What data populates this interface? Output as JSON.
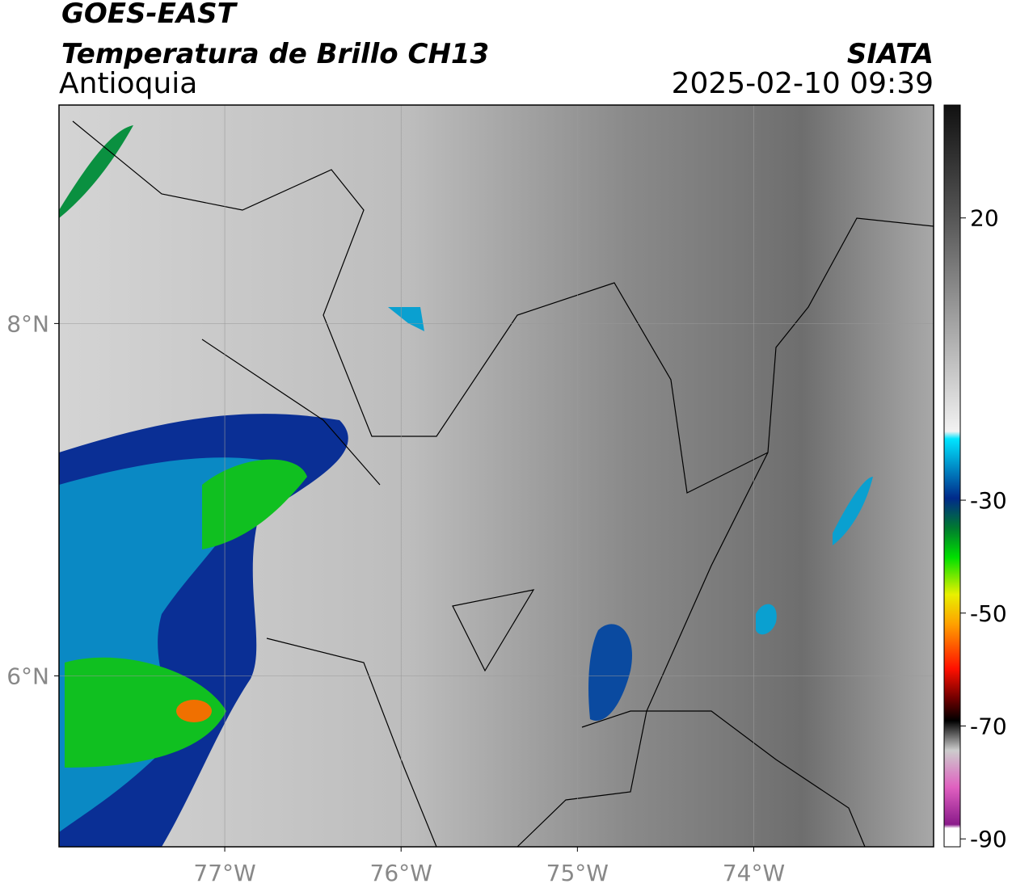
{
  "header": {
    "title": "GOES-EAST",
    "subtitle": "Temperatura de Brillo CH13",
    "region": "Antioquia",
    "source": "SIATA",
    "datetime": "2025-02-10 09:39"
  },
  "map": {
    "xlim": [
      -77.94,
      -72.98
    ],
    "ylim": [
      5.03,
      9.24
    ],
    "xticks": [
      {
        "value": -77,
        "label": "77°W"
      },
      {
        "value": -76,
        "label": "76°W"
      },
      {
        "value": -75,
        "label": "75°W"
      },
      {
        "value": -74,
        "label": "74°W"
      }
    ],
    "yticks": [
      {
        "value": 8,
        "label": "8°N"
      },
      {
        "value": 6,
        "label": "6°N"
      }
    ],
    "grid": true
  },
  "colorbar": {
    "lim": [
      -91.4,
      40
    ],
    "ticks": [
      20,
      -30,
      -50,
      -70,
      -90
    ]
  }
}
